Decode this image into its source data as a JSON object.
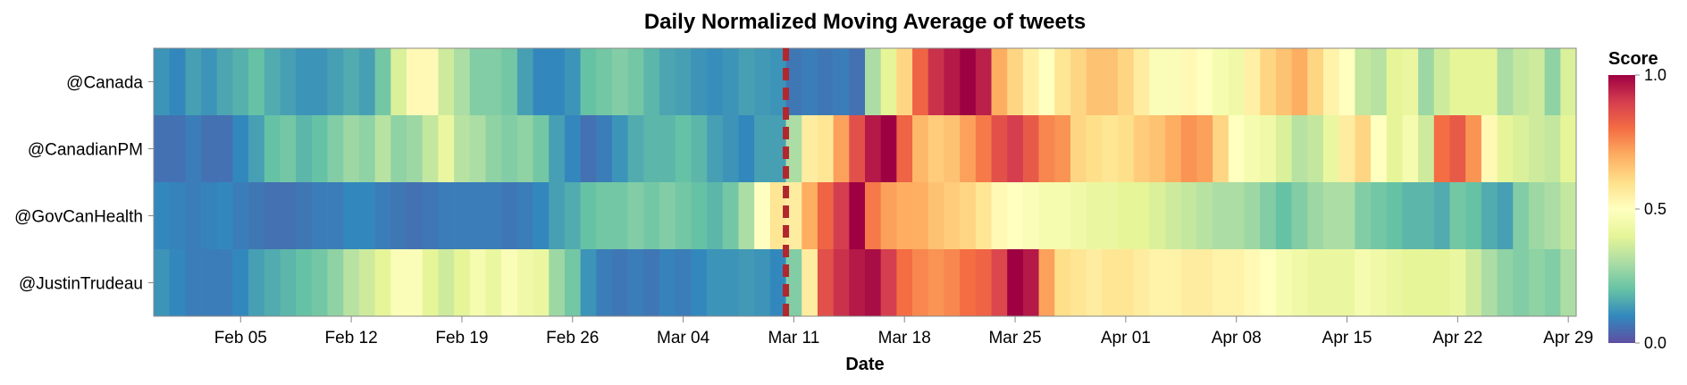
{
  "chart_data": {
    "type": "heatmap",
    "title": "Daily Normalized Moving Average of tweets",
    "xlabel": "Date",
    "ylabel": "",
    "x_start": "Jan 31",
    "x_end": "Apr 30",
    "x_tick_labels": [
      "Feb 05",
      "Feb 12",
      "Feb 19",
      "Feb 26",
      "Mar 04",
      "Mar 11",
      "Mar 18",
      "Mar 25",
      "Apr 01",
      "Apr 08",
      "Apr 15",
      "Apr 22",
      "Apr 29"
    ],
    "rows": [
      "@Canada",
      "@CanadianPM",
      "@GovCanHealth",
      "@JustinTrudeau"
    ],
    "columns_per_row": 90,
    "values": [
      [
        0.12,
        0.1,
        0.14,
        0.12,
        0.15,
        0.17,
        0.2,
        0.16,
        0.14,
        0.12,
        0.12,
        0.14,
        0.16,
        0.14,
        0.22,
        0.38,
        0.52,
        0.52,
        0.36,
        0.3,
        0.24,
        0.24,
        0.22,
        0.14,
        0.1,
        0.1,
        0.12,
        0.2,
        0.22,
        0.24,
        0.22,
        0.18,
        0.15,
        0.14,
        0.12,
        0.11,
        0.12,
        0.14,
        0.13,
        0.12,
        0.07,
        0.08,
        0.07,
        0.08,
        0.06,
        0.3,
        0.4,
        0.62,
        0.82,
        0.92,
        0.96,
        1.0,
        0.95,
        0.7,
        0.62,
        0.55,
        0.5,
        0.58,
        0.62,
        0.66,
        0.66,
        0.62,
        0.56,
        0.48,
        0.48,
        0.52,
        0.5,
        0.46,
        0.44,
        0.55,
        0.62,
        0.66,
        0.7,
        0.62,
        0.54,
        0.5,
        0.34,
        0.32,
        0.4,
        0.42,
        0.28,
        0.36,
        0.4,
        0.4,
        0.4,
        0.3,
        0.34,
        0.36,
        0.26,
        0.38
      ],
      [
        0.06,
        0.06,
        0.08,
        0.06,
        0.06,
        0.1,
        0.14,
        0.2,
        0.22,
        0.18,
        0.2,
        0.24,
        0.28,
        0.26,
        0.32,
        0.26,
        0.28,
        0.34,
        0.42,
        0.32,
        0.3,
        0.26,
        0.24,
        0.26,
        0.22,
        0.14,
        0.1,
        0.06,
        0.08,
        0.12,
        0.16,
        0.18,
        0.18,
        0.2,
        0.18,
        0.14,
        0.12,
        0.1,
        0.14,
        0.14,
        0.3,
        0.56,
        0.58,
        0.72,
        0.86,
        0.96,
        1.0,
        0.82,
        0.68,
        0.64,
        0.66,
        0.72,
        0.78,
        0.86,
        0.9,
        0.84,
        0.76,
        0.74,
        0.62,
        0.6,
        0.58,
        0.6,
        0.64,
        0.66,
        0.7,
        0.74,
        0.72,
        0.62,
        0.5,
        0.46,
        0.44,
        0.38,
        0.32,
        0.34,
        0.42,
        0.56,
        0.62,
        0.5,
        0.4,
        0.46,
        0.36,
        0.8,
        0.84,
        0.74,
        0.52,
        0.4,
        0.38,
        0.36,
        0.34,
        0.4
      ],
      [
        0.1,
        0.09,
        0.08,
        0.09,
        0.1,
        0.08,
        0.07,
        0.06,
        0.06,
        0.07,
        0.08,
        0.08,
        0.1,
        0.1,
        0.08,
        0.07,
        0.06,
        0.07,
        0.08,
        0.08,
        0.08,
        0.08,
        0.07,
        0.08,
        0.1,
        0.14,
        0.16,
        0.2,
        0.22,
        0.22,
        0.24,
        0.22,
        0.24,
        0.22,
        0.2,
        0.18,
        0.22,
        0.3,
        0.5,
        0.58,
        0.56,
        0.7,
        0.82,
        0.9,
        1.0,
        0.78,
        0.72,
        0.7,
        0.7,
        0.66,
        0.64,
        0.62,
        0.58,
        0.52,
        0.5,
        0.48,
        0.46,
        0.46,
        0.44,
        0.42,
        0.42,
        0.4,
        0.4,
        0.38,
        0.36,
        0.34,
        0.32,
        0.3,
        0.3,
        0.28,
        0.24,
        0.2,
        0.24,
        0.28,
        0.3,
        0.3,
        0.24,
        0.22,
        0.2,
        0.18,
        0.18,
        0.16,
        0.22,
        0.2,
        0.16,
        0.14,
        0.24,
        0.28,
        0.3,
        0.34
      ],
      [
        0.12,
        0.1,
        0.08,
        0.08,
        0.08,
        0.1,
        0.14,
        0.16,
        0.18,
        0.2,
        0.22,
        0.26,
        0.32,
        0.36,
        0.4,
        0.48,
        0.48,
        0.4,
        0.36,
        0.4,
        0.46,
        0.42,
        0.48,
        0.44,
        0.42,
        0.28,
        0.22,
        0.12,
        0.08,
        0.07,
        0.08,
        0.07,
        0.09,
        0.08,
        0.1,
        0.12,
        0.12,
        0.13,
        0.12,
        0.1,
        0.24,
        0.56,
        0.86,
        0.92,
        0.96,
        0.98,
        0.9,
        0.8,
        0.76,
        0.74,
        0.76,
        0.8,
        0.82,
        0.88,
        1.0,
        0.96,
        0.72,
        0.6,
        0.58,
        0.56,
        0.58,
        0.58,
        0.56,
        0.54,
        0.54,
        0.56,
        0.56,
        0.54,
        0.54,
        0.52,
        0.5,
        0.46,
        0.44,
        0.42,
        0.42,
        0.42,
        0.46,
        0.44,
        0.42,
        0.4,
        0.4,
        0.4,
        0.42,
        0.36,
        0.3,
        0.26,
        0.24,
        0.26,
        0.24,
        0.3
      ]
    ],
    "event_marker": {
      "label": "",
      "color": "#b2262e",
      "at_column": 39.5
    },
    "legend": {
      "title": "Score",
      "ticks": [
        "1.0",
        "0.5",
        "0.0"
      ],
      "placement": "right",
      "domain": [
        0,
        1
      ]
    },
    "color_scheme": [
      "#5e4fa2",
      "#3288bd",
      "#66c2a5",
      "#abdda4",
      "#e6f598",
      "#ffffbf",
      "#fee08b",
      "#fdae61",
      "#f46d43",
      "#d53e4f",
      "#9e0142"
    ],
    "grid": false
  }
}
